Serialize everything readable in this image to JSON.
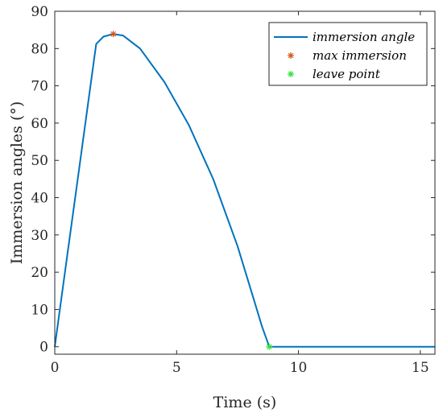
{
  "chart_data": {
    "type": "line",
    "title": "",
    "xlabel": "Time (s)",
    "ylabel": "Immersion angles (°)",
    "xlim": [
      0,
      15.6
    ],
    "ylim": [
      -2,
      90
    ],
    "xticks": [
      0,
      5,
      10,
      15
    ],
    "yticks": [
      0,
      10,
      20,
      30,
      40,
      50,
      60,
      70,
      80,
      90
    ],
    "grid": false,
    "legend_placement": "top-right",
    "series": [
      {
        "name": "immersion angle",
        "color": "#0072BD",
        "x": [
          0,
          0.5,
          1.0,
          1.5,
          1.7,
          2.0,
          2.4,
          2.8,
          3.5,
          4.5,
          5.5,
          6.5,
          7.5,
          8.2,
          8.5,
          8.8,
          10,
          12,
          14,
          15.6
        ],
        "y": [
          0,
          23.9,
          47.8,
          71.7,
          81.2,
          83.2,
          83.9,
          83.5,
          80.0,
          71.0,
          59.5,
          45.0,
          27.0,
          12.0,
          5.5,
          0,
          0,
          0,
          0,
          0
        ]
      },
      {
        "name": "max immersion",
        "color": "#D95319",
        "marker": "*",
        "x": [
          2.4
        ],
        "y": [
          83.9
        ]
      },
      {
        "name": "leave point",
        "color": "#33E033",
        "marker": "*",
        "x": [
          8.8
        ],
        "y": [
          0
        ]
      }
    ]
  }
}
